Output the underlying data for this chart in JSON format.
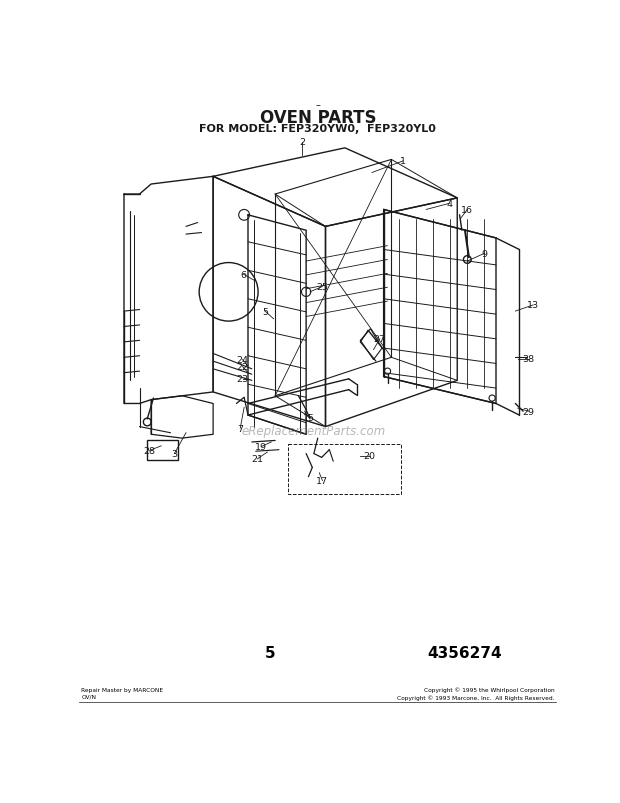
{
  "title": "OVEN PARTS",
  "subtitle": "FOR MODEL: FEP320YW0,  FEP320YL0",
  "page_number": "5",
  "part_number": "4356274",
  "footer_left": "Repair Master by MARCONE\nOV/N",
  "footer_right": "Copyright © 1995 the Whirlpool Corporation\nCopyright © 1993 Marcone, Inc.  All Rights Reserved.",
  "watermark": "eReplacementParts.com",
  "bg_color": "#ffffff",
  "line_color": "#1a1a1a",
  "text_color": "#1a1a1a",
  "title_fontsize": 12,
  "subtitle_fontsize": 8,
  "label_fontsize": 7
}
